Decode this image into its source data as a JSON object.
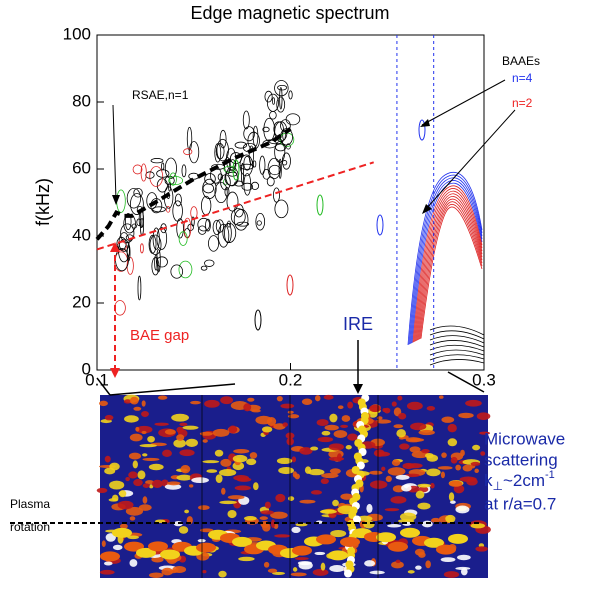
{
  "chart_data": {
    "type": "contour",
    "title": "Edge magnetic spectrum",
    "ylabel": "f(kHz)",
    "xlim": [
      0.1,
      0.3
    ],
    "ylim": [
      0,
      100
    ],
    "xticks": [
      0.1,
      0.2,
      0.3
    ],
    "yticks": [
      0,
      20,
      40,
      60,
      80,
      100
    ],
    "lines": [
      {
        "x": [
          0.1,
          0.243
        ],
        "values": [
          36,
          62
        ],
        "color": "#ee2222",
        "dash": true
      },
      {
        "x": [
          0.1,
          0.106,
          0.11,
          0.114,
          0.118,
          0.13,
          0.15,
          0.17,
          0.19,
          0.2
        ],
        "values": [
          39,
          43,
          47,
          46,
          46,
          50,
          57,
          63,
          68,
          72
        ],
        "color": "#000000",
        "dash": true
      }
    ],
    "vlines": [
      0.255,
      0.274
    ],
    "vline_color": "#2233ee",
    "annotations": {
      "rsae": "RSAE,n=1",
      "baaes": "BAAEs",
      "n4": "n=4",
      "n2": "n=2",
      "bae_gap": "BAE gap",
      "ire": "IRE",
      "microwave": [
        "Microwave",
        "scattering"
      ],
      "k": "k",
      "perp": "⊥",
      "cm": "~2cm",
      "exp": "-1",
      "radius": "at r/a=0.7",
      "plasma": [
        "Plasma",
        "rotation"
      ]
    }
  }
}
